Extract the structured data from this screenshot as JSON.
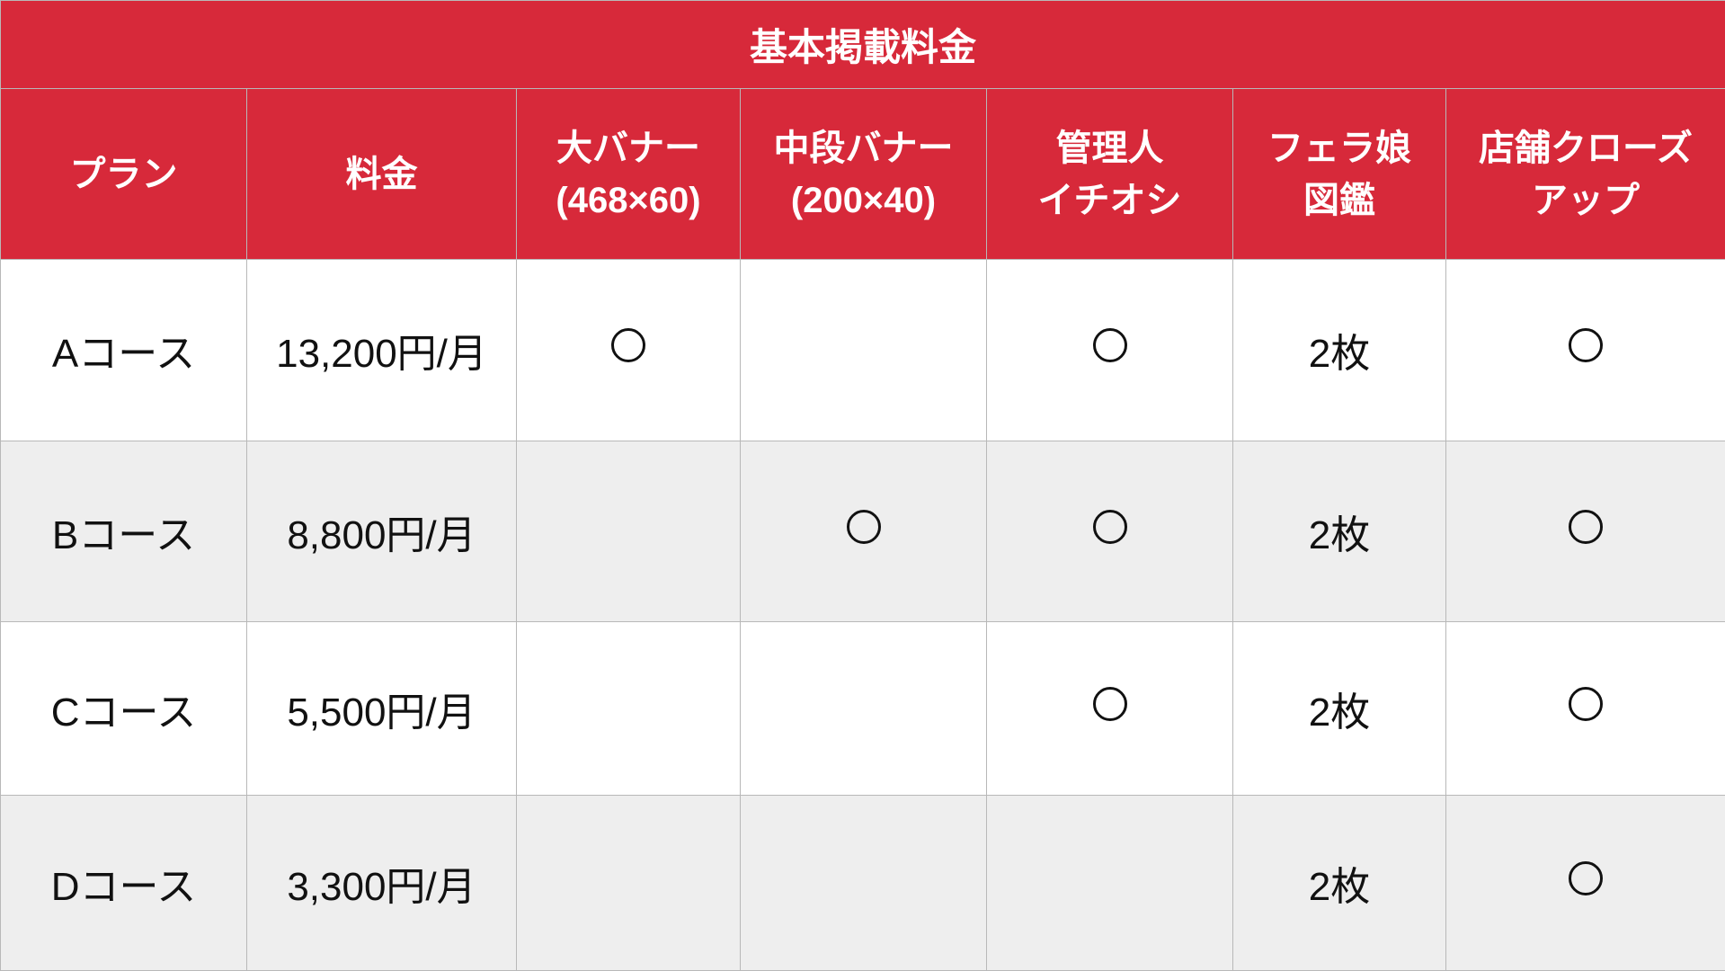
{
  "title": "基本掲載料金",
  "headers": [
    {
      "line1": "プラン",
      "line2": ""
    },
    {
      "line1": "料金",
      "line2": ""
    },
    {
      "line1": "大バナー",
      "line2": "(468×60)"
    },
    {
      "line1": "中段バナー",
      "line2": "(200×40)"
    },
    {
      "line1": "管理人",
      "line2": "イチオシ"
    },
    {
      "line1": "フェラ娘",
      "line2": "図鑑"
    },
    {
      "line1": "店舗クローズ",
      "line2": "アップ"
    }
  ],
  "rows": [
    {
      "plan": "Aコース",
      "price": "13,200円/月",
      "large_banner": true,
      "mid_banner": false,
      "pick": true,
      "zukan": "2枚",
      "closeup": true
    },
    {
      "plan": "Bコース",
      "price": "8,800円/月",
      "large_banner": false,
      "mid_banner": true,
      "pick": true,
      "zukan": "2枚",
      "closeup": true
    },
    {
      "plan": "Cコース",
      "price": "5,500円/月",
      "large_banner": false,
      "mid_banner": false,
      "pick": true,
      "zukan": "2枚",
      "closeup": true
    },
    {
      "plan": "Dコース",
      "price": "3,300円/月",
      "large_banner": false,
      "mid_banner": false,
      "pick": false,
      "zukan": "2枚",
      "closeup": true
    }
  ],
  "colors": {
    "header_bg": "#d7293a",
    "alt_row_bg": "#eeeeee"
  }
}
